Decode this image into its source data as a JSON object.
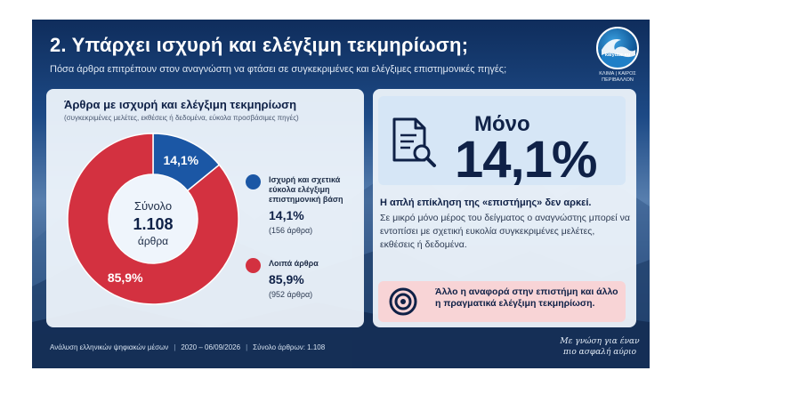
{
  "header": {
    "title": "2. Υπάρχει ισχυρή και ελέγξιμη τεκμηρίωση;",
    "subtitle": "Πόσα άρθρα επιτρέπουν στον αναγνώστη να φτάσει σε συγκεκριμένες και ελέγξιμες επιστημονικές πηγές;"
  },
  "logo": {
    "name": "kalydas.eu",
    "tagline_line1": "ΚΛΙΜΑ | ΚΑΙΡΟΣ",
    "tagline_line2": "ΠΕΡΙΒΑΛΛΟΝ"
  },
  "chart_data": {
    "type": "pie",
    "title": "Άρθρα με ισχυρή και ελέγξιμη τεκμηρίωση",
    "subtitle": "(συγκεκριμένες μελέτες, εκθέσεις ή δεδομένα, εύκολα προσβάσιμες πηγές)",
    "center_label_top": "Σύνολο",
    "center_value": "1.108",
    "center_label_bottom": "άρθρα",
    "slices": [
      {
        "label": "Ισχυρή και σχετικά εύκολα ελέγξιμη επιστημονική βάση",
        "value": 14.1,
        "display": "14,1%",
        "count_label": "(156 άρθρα)",
        "count": 156,
        "color": "#1b57a5"
      },
      {
        "label": "Λοιπά άρθρα",
        "value": 85.9,
        "display": "85,9%",
        "count_label": "(952 άρθρα)",
        "count": 952,
        "color": "#d33140"
      }
    ]
  },
  "highlight": {
    "prefix": "Μόνο",
    "value": "14,1%"
  },
  "insight": {
    "title": "Η απλή επίκληση της «επιστήμης» δεν αρκεί.",
    "body": "Σε μικρό μόνο μέρος του δείγματος ο αναγνώστης μπορεί να εντοπίσει με σχετική ευκολία συγκεκριμένες μελέτες, εκθέσεις ή δεδομένα."
  },
  "callout": {
    "text": "Άλλο η αναφορά στην επιστήμη και άλλο η πραγματικά ελέγξιμη τεκμηρίωση."
  },
  "footer": {
    "source": "Ανάλυση ελληνικών ψηφιακών μέσων",
    "period": "2020 – 06/09/2026",
    "total": "Σύνολο άρθρων: 1.108",
    "tagline": "Με γνώση για έναν πιο ασφαλή αύριο"
  },
  "colors": {
    "navy": "#0f2147",
    "blue": "#1b57a5",
    "red": "#d33140",
    "callout_pink": "#f8d4d6",
    "highlight_blue": "#d6e6f6"
  }
}
